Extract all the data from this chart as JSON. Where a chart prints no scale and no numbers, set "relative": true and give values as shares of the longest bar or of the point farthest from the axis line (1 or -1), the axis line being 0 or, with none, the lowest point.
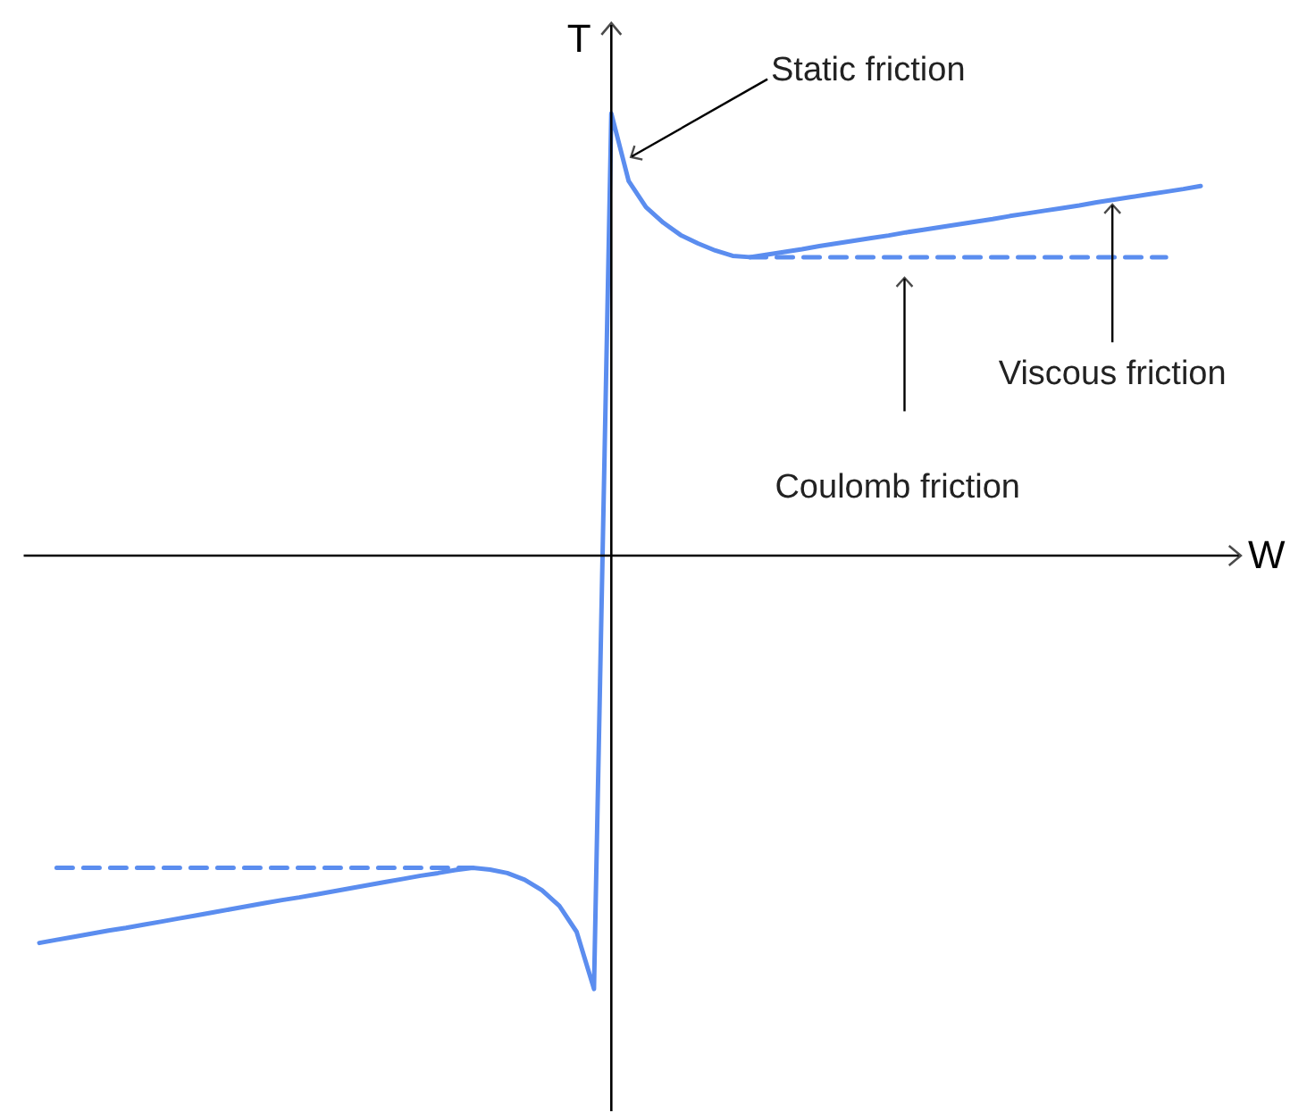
{
  "chart_data": {
    "type": "line",
    "relative": true,
    "xlabel": "W",
    "ylabel": "T",
    "categories": [
      null,
      null,
      null,
      null,
      null,
      null,
      null,
      null,
      null,
      null,
      null,
      null,
      null,
      null,
      null,
      null,
      null,
      null,
      null,
      null,
      null,
      null,
      null,
      null,
      null,
      null,
      null,
      null,
      null,
      null,
      null,
      null,
      null,
      null,
      null,
      null,
      null,
      null,
      null,
      null,
      null,
      null,
      null,
      null,
      null,
      null,
      null,
      null,
      null,
      null,
      null,
      null,
      null,
      null,
      null,
      null,
      null,
      null,
      null,
      null,
      null,
      null,
      null,
      null,
      null,
      null,
      null,
      null
    ],
    "series": [
      {
        "color": "#5b8def",
        "line_style": "solid",
        "values": [
          -0.876,
          -0.869,
          -0.862,
          -0.855,
          -0.848,
          -0.842,
          -0.835,
          -0.828,
          -0.821,
          -0.814,
          -0.807,
          -0.8,
          -0.793,
          -0.786,
          -0.779,
          -0.773,
          -0.766,
          -0.759,
          -0.752,
          -0.745,
          -0.738,
          -0.731,
          -0.724,
          -0.718,
          -0.711,
          -0.706,
          -0.71,
          -0.718,
          -0.733,
          -0.757,
          -0.792,
          -0.851,
          -0.98,
          1.0,
          0.847,
          0.788,
          0.753,
          0.725,
          0.706,
          0.69,
          0.678,
          0.675,
          0.681,
          0.687,
          0.693,
          0.7,
          0.706,
          0.712,
          0.718,
          0.724,
          0.731,
          0.737,
          0.743,
          0.749,
          0.755,
          0.761,
          0.768,
          0.774,
          0.78,
          0.786,
          0.792,
          0.799,
          0.805,
          0.811,
          0.817,
          0.823,
          0.829,
          0.836
        ]
      },
      {
        "color": "#5b8def",
        "line_style": "dashed",
        "values": [
          null,
          -0.706,
          -0.706,
          -0.706,
          -0.706,
          -0.706,
          -0.706,
          -0.706,
          -0.706,
          -0.706,
          -0.706,
          -0.706,
          -0.706,
          -0.706,
          -0.706,
          -0.706,
          -0.706,
          -0.706,
          -0.706,
          -0.706,
          -0.706,
          -0.706,
          -0.706,
          -0.706,
          -0.706,
          -0.706,
          null,
          null,
          null,
          null,
          null,
          null,
          null,
          null,
          null,
          null,
          null,
          null,
          null,
          null,
          null,
          0.675,
          0.675,
          0.675,
          0.675,
          0.675,
          0.675,
          0.675,
          0.675,
          0.675,
          0.675,
          0.675,
          0.675,
          0.675,
          0.675,
          0.675,
          0.675,
          0.675,
          0.675,
          0.675,
          0.675,
          0.675,
          0.675,
          0.675,
          0.675,
          0.675,
          null,
          null
        ]
      }
    ],
    "annotations": [
      "Static friction",
      "Viscous friction",
      "Coulomb friction"
    ]
  }
}
